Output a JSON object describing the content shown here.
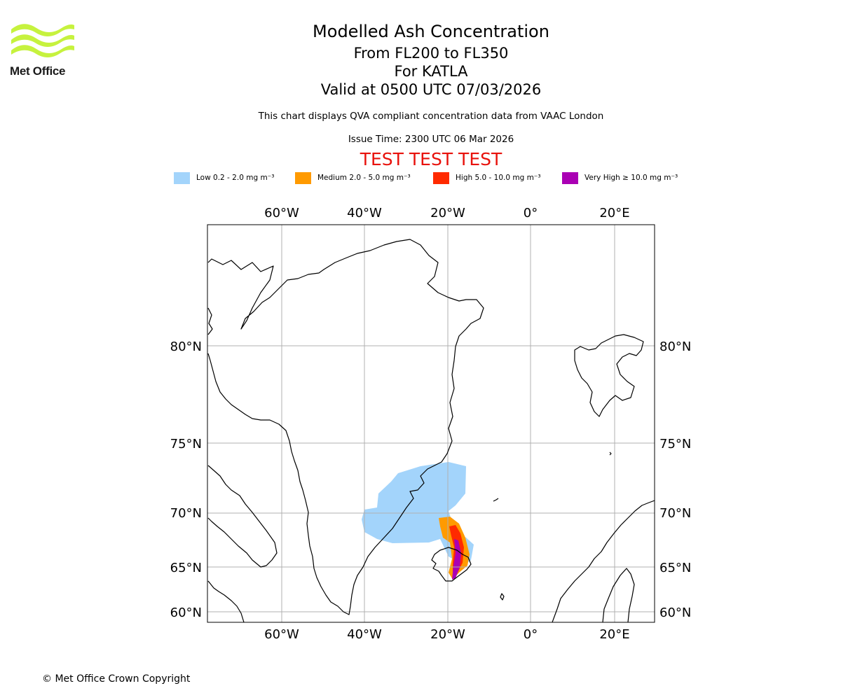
{
  "branding": {
    "logo_text": "Met Office",
    "logo_color": "#c6f23e",
    "copyright": "© Met Office Crown Copyright"
  },
  "header": {
    "title": "Modelled Ash Concentration",
    "levels": "From FL200 to FL350",
    "volcano": "For KATLA",
    "valid_time": "Valid at 0500 UTC 07/03/2026",
    "compliance_note": "This chart displays QVA compliant concentration data from VAAC London",
    "issue_time": "Issue Time: 2300 UTC 06 Mar 2026",
    "test_banner": "TEST TEST TEST"
  },
  "legend": [
    {
      "label": "Low 0.2 - 2.0 mg m⁻³",
      "color": "#a3d4fb"
    },
    {
      "label": "Medium 2.0 - 5.0 mg m⁻³",
      "color": "#ff9a00"
    },
    {
      "label": "High 5.0 - 10.0 mg m⁻³",
      "color": "#ff2a00"
    },
    {
      "label": "Very High  ≥  10.0 mg m⁻³",
      "color": "#aa00b4"
    }
  ],
  "map": {
    "longitude_labels": [
      "60°W",
      "40°W",
      "20°W",
      "0°",
      "20°E"
    ],
    "latitude_labels": [
      "80°N",
      "75°N",
      "70°N",
      "65°N",
      "60°N"
    ],
    "gridline_color": "#b0b0b0",
    "coastline_color": "#000000"
  }
}
